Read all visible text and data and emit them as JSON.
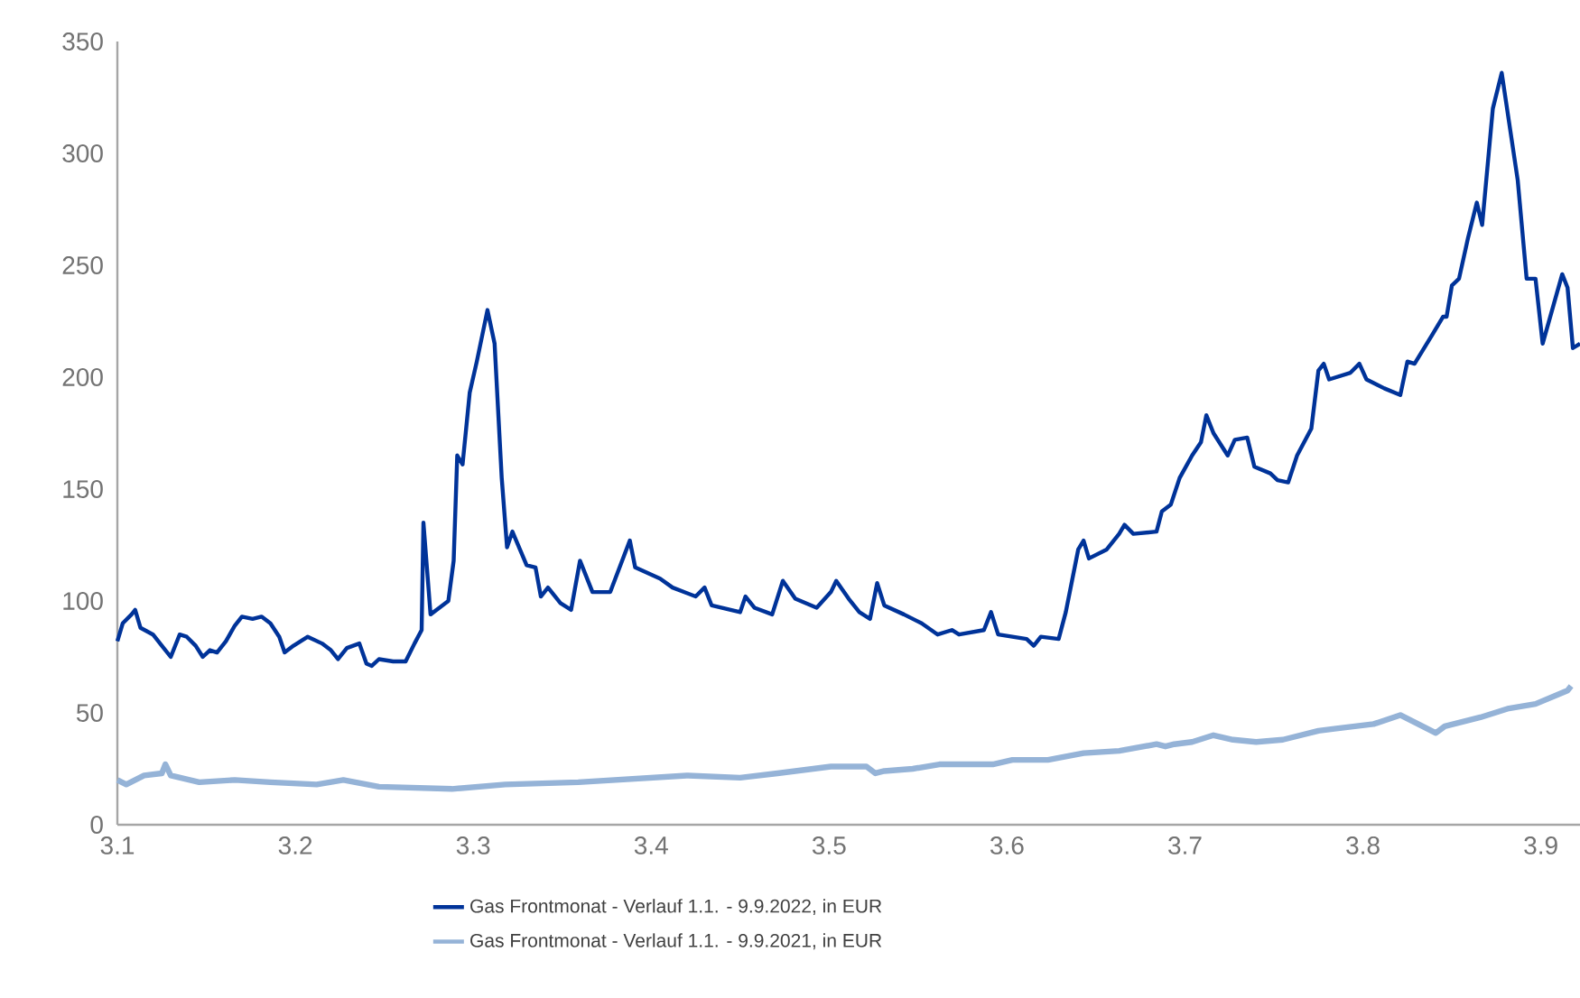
{
  "chart_data": {
    "type": "line",
    "xlim": [
      3.1,
      3.922
    ],
    "ylim": [
      0,
      350
    ],
    "xticks": [
      3.1,
      3.2,
      3.3,
      3.4,
      3.5,
      3.6,
      3.7,
      3.8,
      3.9
    ],
    "yticks": [
      0,
      50,
      100,
      150,
      200,
      250,
      300,
      350
    ],
    "grid": false,
    "legend": "bottom",
    "marker": "none",
    "line_style": "solid",
    "series": [
      {
        "name": "Gas Frontmonat - Verlauf 1.1. - 9.9.2022, in EUR",
        "color": "#003399",
        "x": [
          3.1,
          3.103,
          3.108,
          3.11,
          3.113,
          3.12,
          3.125,
          3.13,
          3.135,
          3.139,
          3.144,
          3.148,
          3.152,
          3.156,
          3.161,
          3.166,
          3.17,
          3.176,
          3.181,
          3.186,
          3.191,
          3.194,
          3.199,
          3.207,
          3.215,
          3.22,
          3.224,
          3.229,
          3.236,
          3.24,
          3.243,
          3.247,
          3.255,
          3.262,
          3.267,
          3.271,
          3.272,
          3.276,
          3.281,
          3.286,
          3.289,
          3.291,
          3.294,
          3.298,
          3.302,
          3.308,
          3.312,
          3.316,
          3.319,
          3.322,
          3.33,
          3.335,
          3.338,
          3.342,
          3.349,
          3.355,
          3.36,
          3.367,
          3.377,
          3.388,
          3.391,
          3.405,
          3.412,
          3.425,
          3.43,
          3.434,
          3.45,
          3.453,
          3.458,
          3.468,
          3.474,
          3.481,
          3.493,
          3.501,
          3.504,
          3.511,
          3.517,
          3.523,
          3.527,
          3.531,
          3.542,
          3.552,
          3.561,
          3.569,
          3.573,
          3.587,
          3.591,
          3.595,
          3.603,
          3.611,
          3.615,
          3.619,
          3.629,
          3.633,
          3.64,
          3.643,
          3.646,
          3.656,
          3.663,
          3.666,
          3.671,
          3.684,
          3.687,
          3.692,
          3.697,
          3.704,
          3.709,
          3.712,
          3.716,
          3.724,
          3.728,
          3.735,
          3.739,
          3.748,
          3.752,
          3.758,
          3.763,
          3.771,
          3.775,
          3.778,
          3.781,
          3.793,
          3.798,
          3.802,
          3.812,
          3.821,
          3.825,
          3.829,
          3.839,
          3.845,
          3.847,
          3.85,
          3.854,
          3.859,
          3.864,
          3.867,
          3.873,
          3.878,
          3.887,
          3.892,
          3.897,
          3.901,
          3.912,
          3.915,
          3.918,
          3.922
        ],
        "values": [
          82,
          90,
          94,
          96,
          88,
          85,
          80,
          75,
          85,
          84,
          80,
          75,
          78,
          77,
          82,
          89,
          93,
          92,
          93,
          90,
          84,
          77,
          80,
          84,
          81,
          78,
          74,
          79,
          81,
          72,
          71,
          74,
          73,
          73,
          81,
          87,
          135,
          94,
          97,
          100,
          118,
          165,
          161,
          193,
          207,
          230,
          215,
          155,
          124,
          131,
          116,
          115,
          102,
          106,
          99,
          96,
          118,
          104,
          104,
          127,
          115,
          110,
          106,
          102,
          106,
          98,
          95,
          102,
          97,
          94,
          109,
          101,
          97,
          104,
          109,
          101,
          95,
          92,
          108,
          98,
          94,
          90,
          85,
          87,
          85,
          87,
          95,
          85,
          84,
          83,
          80,
          84,
          83,
          95,
          123,
          127,
          119,
          123,
          130,
          134,
          130,
          131,
          140,
          143,
          155,
          165,
          171,
          183,
          175,
          165,
          172,
          173,
          160,
          157,
          154,
          153,
          165,
          177,
          203,
          206,
          199,
          202,
          206,
          199,
          195,
          192,
          207,
          206,
          219,
          227,
          227,
          241,
          244,
          262,
          278,
          268,
          320,
          336,
          288,
          244,
          244,
          215,
          246,
          240,
          213,
          215
        ]
      },
      {
        "name": "Gas Frontmonat - Verlauf 1.1. - 9.9.2021, in EUR",
        "color": "#95b3d7",
        "x": [
          3.1,
          3.105,
          3.115,
          3.125,
          3.127,
          3.13,
          3.146,
          3.166,
          3.186,
          3.212,
          3.227,
          3.247,
          3.288,
          3.318,
          3.359,
          3.42,
          3.45,
          3.471,
          3.501,
          3.521,
          3.526,
          3.531,
          3.547,
          3.562,
          3.592,
          3.603,
          3.623,
          3.643,
          3.663,
          3.684,
          3.689,
          3.694,
          3.704,
          3.716,
          3.727,
          3.74,
          3.755,
          3.775,
          3.785,
          3.806,
          3.821,
          3.826,
          3.841,
          3.846,
          3.856,
          3.866,
          3.882,
          3.897,
          3.915,
          3.917
        ],
        "values": [
          20,
          18,
          22,
          23,
          27,
          22,
          19,
          20,
          19,
          18,
          20,
          17,
          16,
          18,
          19,
          22,
          21,
          23,
          26,
          26,
          23,
          24,
          25,
          27,
          27,
          29,
          29,
          32,
          33,
          36,
          35,
          36,
          37,
          40,
          38,
          37,
          38,
          42,
          43,
          45,
          49,
          47,
          41,
          44,
          46,
          48,
          52,
          54,
          60,
          62
        ]
      }
    ]
  }
}
